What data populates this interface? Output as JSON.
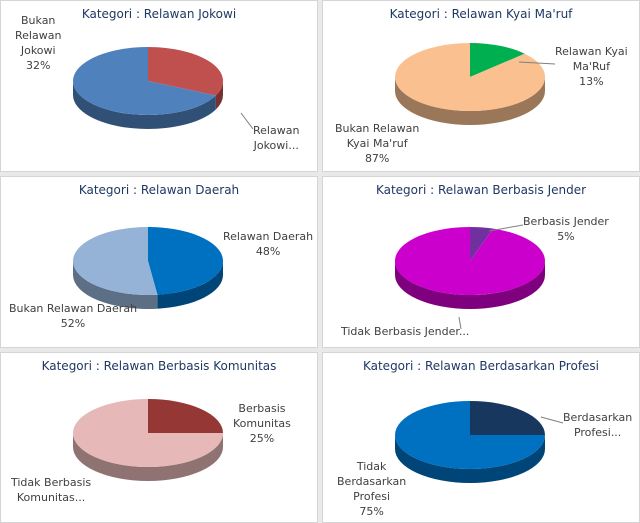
{
  "chart_data": [
    {
      "type": "pie",
      "title": "Kategori : Relawan Jokowi",
      "slices": [
        {
          "label": "Bukan\nRelawan\nJokowi\n32%",
          "value": 32,
          "color": "#c0504d"
        },
        {
          "label": "Relawan\nJokowi...",
          "value": 68,
          "color": "#4f81bd"
        }
      ]
    },
    {
      "type": "pie",
      "title": "Kategori : Relawan Kyai Ma'ruf",
      "slices": [
        {
          "label": "Relawan Kyai\nMa'Ruf\n13%",
          "value": 13,
          "color": "#00b050"
        },
        {
          "label": "Bukan Relawan\nKyai Ma'ruf\n87%",
          "value": 87,
          "color": "#fac090"
        }
      ]
    },
    {
      "type": "pie",
      "title": "Kategori : Relawan Daerah",
      "slices": [
        {
          "label": "Relawan Daerah\n48%",
          "value": 48,
          "color": "#0070c0"
        },
        {
          "label": "Bukan Relawan Daerah\n52%",
          "value": 52,
          "color": "#95b3d7"
        }
      ]
    },
    {
      "type": "pie",
      "title": "Kategori : Relawan Berbasis Jender",
      "slices": [
        {
          "label": "Berbasis Jender\n5%",
          "value": 5,
          "color": "#7030a0"
        },
        {
          "label": "Tidak Berbasis Jender...",
          "value": 95,
          "color": "#cc00cc"
        }
      ]
    },
    {
      "type": "pie",
      "title": "Kategori : Relawan Berbasis Komunitas",
      "slices": [
        {
          "label": "Berbasis\nKomunitas\n25%",
          "value": 25,
          "color": "#953735"
        },
        {
          "label": "Tidak Berbasis\nKomunitas...",
          "value": 75,
          "color": "#e6b9b8"
        }
      ]
    },
    {
      "type": "pie",
      "title": "Kategori : Relawan Berdasarkan Profesi",
      "slices": [
        {
          "label": "Berdasarkan\nProfesi...",
          "value": 25,
          "color": "#17375e"
        },
        {
          "label": "Tidak\nBerdasarkan\nProfesi\n75%",
          "value": 75,
          "color": "#0070c0"
        }
      ]
    }
  ]
}
